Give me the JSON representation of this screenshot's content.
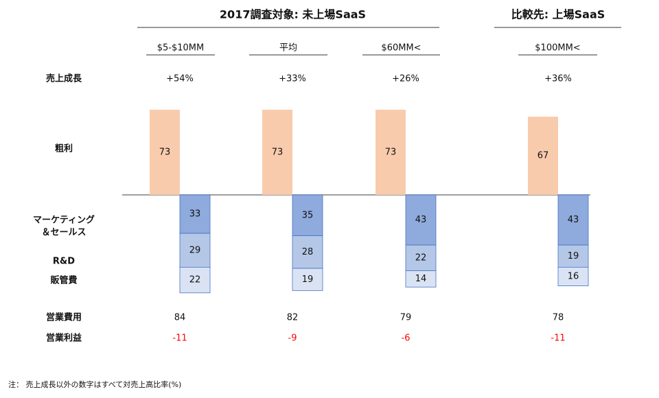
{
  "chart_data": {
    "type": "bar",
    "groups": [
      {
        "label": "2017調査対象: 未上場SaaS",
        "span": 3
      },
      {
        "label": "比較先: 上場SaaS",
        "span": 1
      }
    ],
    "categories": [
      "$5-$10MM",
      "平均",
      "$60MM<",
      "$100MM<"
    ],
    "growth": {
      "name": "売上成長",
      "values": [
        54,
        33,
        26,
        36
      ],
      "value_labels": [
        "+54%",
        "+33%",
        "+26%",
        "+36%"
      ]
    },
    "series": [
      {
        "name": "粗利",
        "color": "#f8cbad",
        "direction": "up",
        "values": [
          73,
          73,
          73,
          67
        ]
      },
      {
        "name": [
          "マーケティング",
          "＆セールス"
        ],
        "color": "#8faadc",
        "direction": "down",
        "values": [
          33,
          35,
          43,
          43
        ]
      },
      {
        "name": "R&D",
        "color": "#b4c7e7",
        "direction": "down",
        "values": [
          29,
          28,
          22,
          19
        ]
      },
      {
        "name": "販管費",
        "color": "#dae3f3",
        "direction": "down",
        "values": [
          22,
          19,
          14,
          16
        ]
      }
    ],
    "opex": {
      "name": "営業費用",
      "values": [
        84,
        82,
        79,
        78
      ]
    },
    "operating_profit": {
      "name": "営業利益",
      "color": "#ff0000",
      "values": [
        -11,
        -9,
        -6,
        -11
      ]
    },
    "note": "注： 売上成長以外の数字はすべて対売上高比率(%)"
  }
}
